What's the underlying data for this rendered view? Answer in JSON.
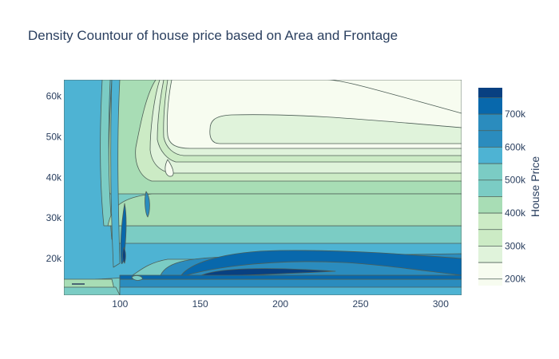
{
  "chart_data": {
    "type": "contour",
    "title": "Density Countour of house price based on Area and Frontage",
    "xlabel": "",
    "ylabel": "",
    "xlim": [
      65,
      313
    ],
    "ylim": [
      11000,
      64000
    ],
    "x_ticks": [
      {
        "value": 100,
        "label": "100"
      },
      {
        "value": 150,
        "label": "150"
      },
      {
        "value": 200,
        "label": "200"
      },
      {
        "value": 250,
        "label": "250"
      },
      {
        "value": 300,
        "label": "300"
      }
    ],
    "y_ticks": [
      {
        "value": 20000,
        "label": "20k"
      },
      {
        "value": 30000,
        "label": "30k"
      },
      {
        "value": 40000,
        "label": "40k"
      },
      {
        "value": 50000,
        "label": "50k"
      },
      {
        "value": 60000,
        "label": "60k"
      }
    ],
    "colorbar": {
      "title": "House Price",
      "range": [
        180000,
        780000
      ],
      "levels": [
        200000,
        250000,
        300000,
        350000,
        400000,
        450000,
        500000,
        550000,
        600000,
        650000,
        700000,
        750000
      ],
      "ticks": [
        {
          "value": 200000,
          "label": "200k"
        },
        {
          "value": 300000,
          "label": "300k"
        },
        {
          "value": 400000,
          "label": "400k"
        },
        {
          "value": 500000,
          "label": "500k"
        },
        {
          "value": 600000,
          "label": "600k"
        },
        {
          "value": 700000,
          "label": "700k"
        }
      ],
      "colors": [
        "#f7fcf0",
        "#e0f3db",
        "#ccebc5",
        "#a8ddb5",
        "#7bccc4",
        "#4eb3d3",
        "#2b8cbe",
        "#0868ac",
        "#084081"
      ]
    },
    "grid": false
  }
}
